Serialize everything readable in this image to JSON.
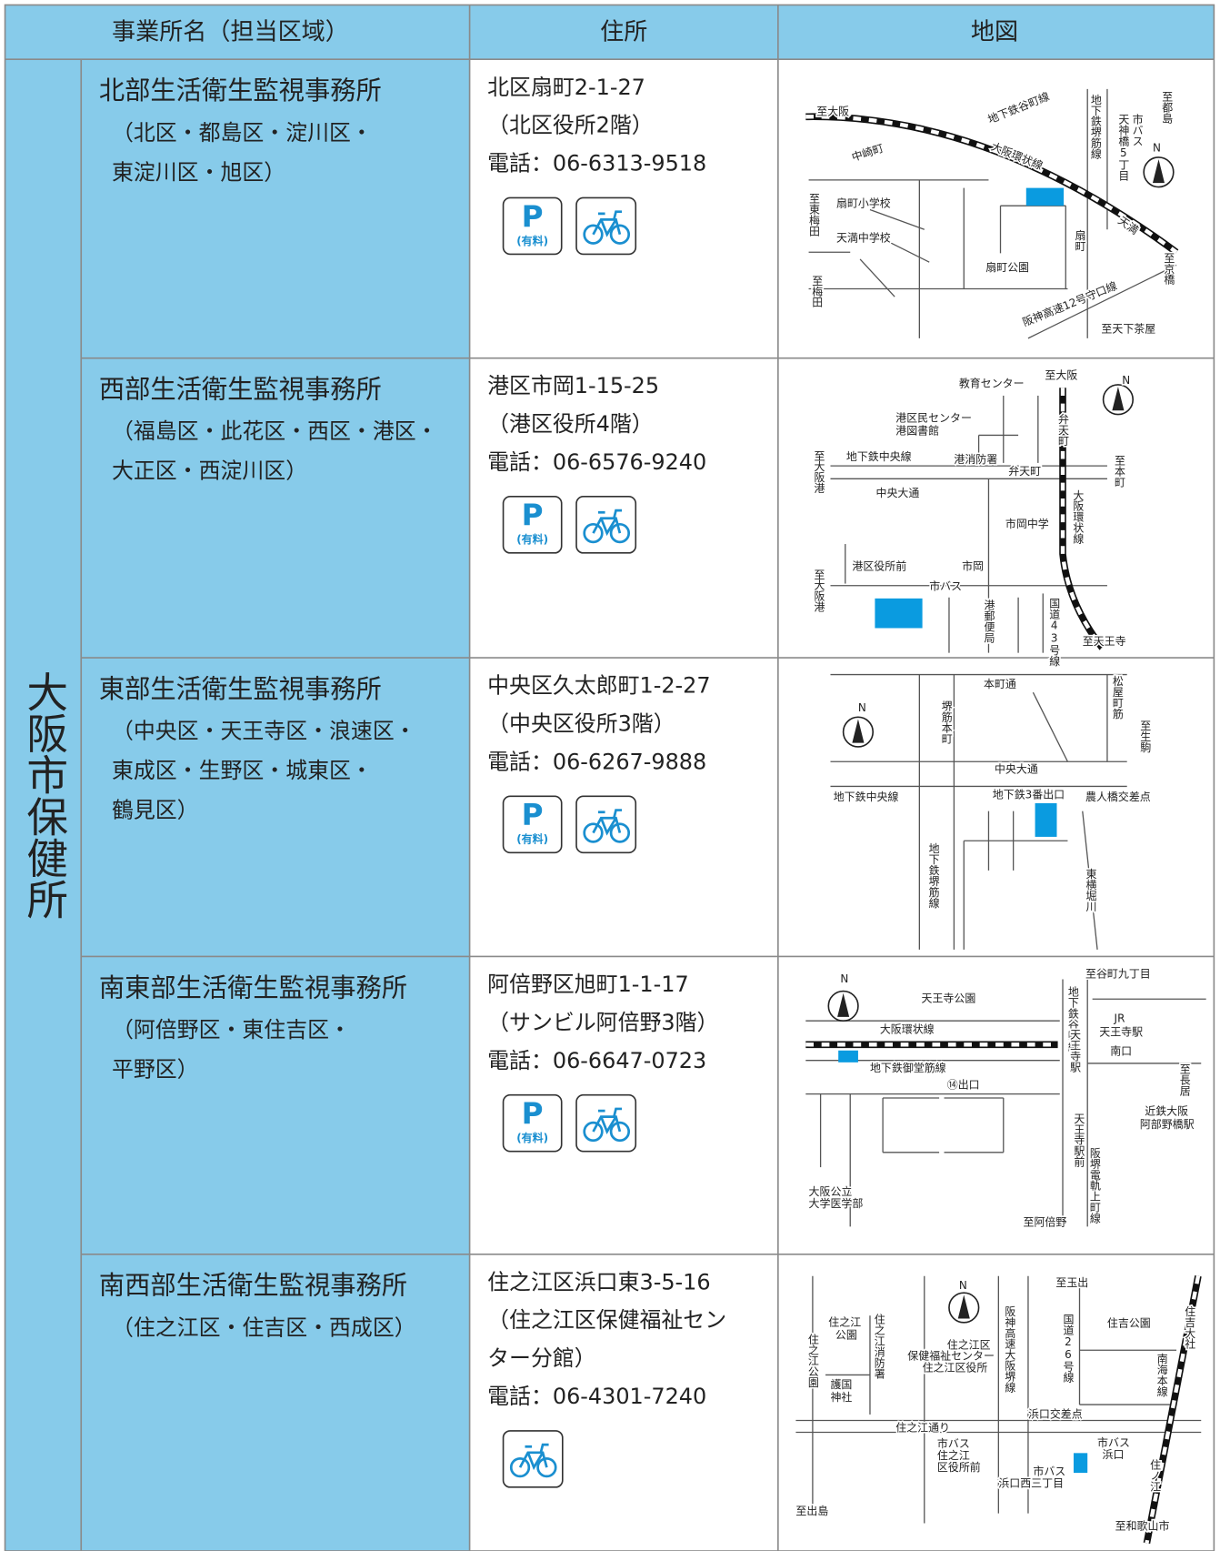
{
  "header": {
    "name_col": "事業所名（担当区域）",
    "address_col": "住所",
    "map_col": "地図"
  },
  "group_label": "大阪市保健所",
  "offices": [
    {
      "name": "北部生活衛生監視事務所",
      "areas": [
        "（北区・都島区・淀川区・",
        "東淀川区・旭区）"
      ],
      "address": [
        "北区扇町2-1-27",
        "（北区役所2階）"
      ],
      "phone": "電話：06-6313-9518",
      "parking": {
        "letter": "P",
        "note": "(有料)"
      },
      "map_labels": [
        "至大阪",
        "地下鉄谷町線",
        "大阪環状線",
        "中崎町",
        "地下鉄堺筋線",
        "市バス",
        "天神橋5丁目",
        "至都島",
        "N",
        "至東梅田",
        "扇町小学校",
        "天満中学校",
        "天満",
        "扇町",
        "扇町公園",
        "至京橋",
        "至梅田",
        "阪神高速12号守口線",
        "至天下茶屋"
      ]
    },
    {
      "name": "西部生活衛生監視事務所",
      "areas": [
        "（福島区・此花区・西区・港区・",
        "大正区・西淀川区）"
      ],
      "address": [
        "港区市岡1-15-25",
        "（港区役所4階）"
      ],
      "phone": "電話：06-6576-9240",
      "parking": {
        "letter": "P",
        "note": "(有料)"
      },
      "map_labels": [
        "教育センター",
        "至大阪",
        "N",
        "港区民センター",
        "港図書館",
        "弁天町",
        "至大阪港",
        "地下鉄中央線",
        "港消防署",
        "弁天町",
        "至本町",
        "中央大通",
        "市岡中学",
        "大阪環状線",
        "港区役所前",
        "市岡",
        "市バス",
        "至大阪港",
        "港郵便局",
        "国道43号線",
        "至天王寺"
      ]
    },
    {
      "name": "東部生活衛生監視事務所",
      "areas": [
        "（中央区・天王寺区・浪速区・",
        "東成区・生野区・城東区・",
        "鶴見区）"
      ],
      "address": [
        "中央区久太郎町1-2-27",
        "（中央区役所3階）"
      ],
      "phone": "電話：06-6267-9888",
      "parking": {
        "letter": "P",
        "note": "(有料)"
      },
      "map_labels": [
        "本町通",
        "松屋町筋",
        "堺筋本町",
        "N",
        "至生駒",
        "中央大通",
        "地下鉄中央線",
        "地下鉄3番出口",
        "農人橋交差点",
        "地下鉄堺筋線",
        "東横堀川"
      ]
    },
    {
      "name": "南東部生活衛生監視事務所",
      "areas": [
        "（阿倍野区・東住吉区・",
        "平野区）"
      ],
      "address": [
        "阿倍野区旭町1-1-17",
        "（サンビル阿倍野3階）"
      ],
      "phone": "電話：06-6647-0723",
      "parking": {
        "letter": "P",
        "note": "(有料)"
      },
      "map_labels": [
        "N",
        "天王寺公園",
        "至谷町九丁目",
        "地下鉄谷町線",
        "大阪環状線",
        "JR",
        "天王寺駅",
        "南口",
        "天王寺駅",
        "地下鉄御堂筋線",
        "⑭出口",
        "至長居",
        "近鉄大阪",
        "阿部野橋駅",
        "天王寺駅前",
        "阪堺電軌上町線",
        "大阪公立",
        "大学医学部",
        "至阿倍野"
      ]
    },
    {
      "name": "南西部生活衛生監視事務所",
      "areas": [
        "（住之江区・住吉区・西成区）"
      ],
      "address": [
        "住之江区浜口東3-5-16",
        "（住之江区保健福祉セン",
        "ター分館）"
      ],
      "phone": "電話：06-4301-7240",
      "map_labels": [
        "至玉出",
        "N",
        "住之江公園",
        "住之江",
        "公園",
        "住之江消防署",
        "住之江区",
        "保健福祉センター",
        "住之江区役所",
        "阪神高速大阪堺線",
        "国道26号線",
        "住吉公園",
        "住吉大社",
        "南海本線",
        "護国",
        "神社",
        "浜口交差点",
        "住之江通り",
        "市バス",
        "住之江",
        "区役所前",
        "市バス",
        "浜口",
        "市バス",
        "浜口西三丁目",
        "住ノ江",
        "至出島",
        "至和歌山市"
      ]
    }
  ]
}
